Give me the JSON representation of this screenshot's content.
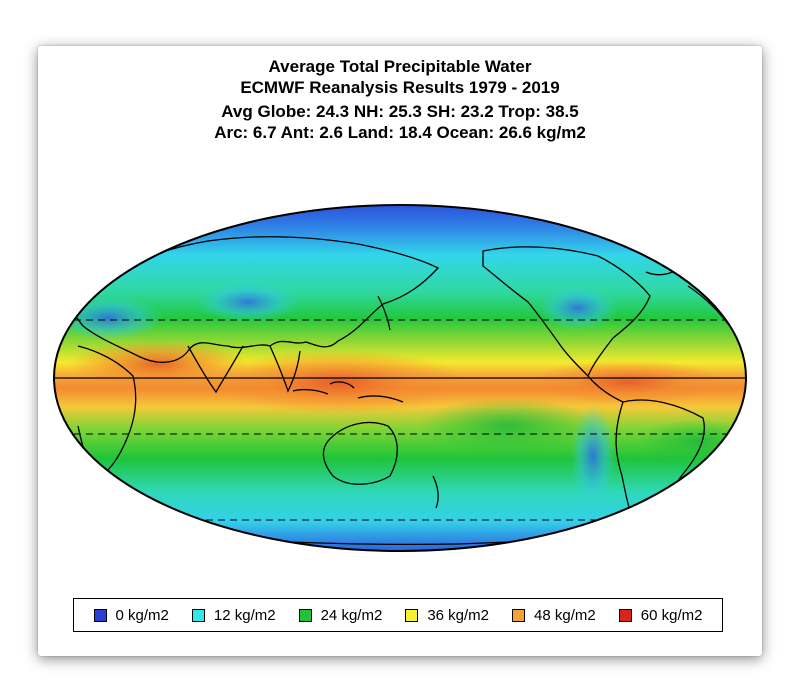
{
  "titles": {
    "line1": "Average Total Precipitable Water",
    "line2": "ECMWF Reanalysis Results 1979 - 2019",
    "line3": "Avg Globe: 24.3  NH: 25.3  SH: 23.2  Trop: 38.5",
    "line4": "Arc: 6.7  Ant: 2.6  Land: 18.4 Ocean: 26.6 kg/m2"
  },
  "legend": [
    {
      "label": "0 kg/m2",
      "color": "#2a3fd6"
    },
    {
      "label": "12 kg/m2",
      "color": "#33e6ea"
    },
    {
      "label": "24 kg/m2",
      "color": "#1fc43a"
    },
    {
      "label": "36 kg/m2",
      "color": "#f4f22e"
    },
    {
      "label": "48 kg/m2",
      "color": "#f6a23a"
    },
    {
      "label": "60 kg/m2",
      "color": "#d8251e"
    }
  ],
  "map": {
    "projection": "mollweide",
    "central_meridian": "pacific",
    "reference_lines": [
      "equator (solid)",
      "tropic of cancer (dashed)",
      "tropic of capricorn (dashed)",
      "antarctic circle (dashed)"
    ]
  }
}
